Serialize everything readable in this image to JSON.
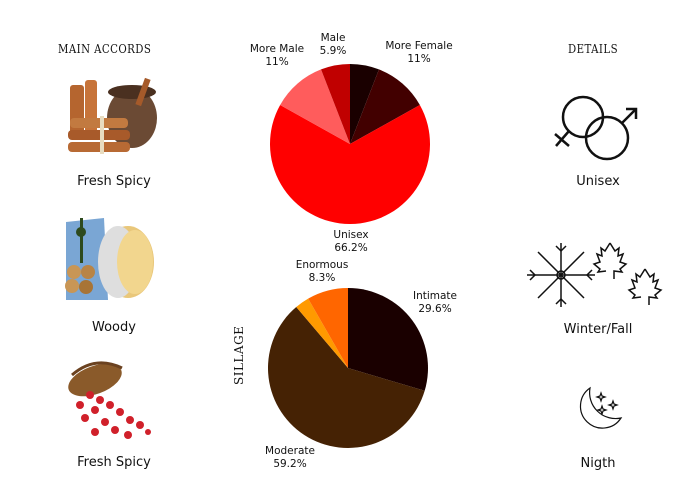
{
  "main_accords": {
    "title": "MAIN ACCORDS",
    "items": [
      {
        "label": "Fresh Spicy",
        "icon": "cinnamon-image"
      },
      {
        "label": "Woody",
        "icon": "wood-logs-image"
      },
      {
        "label": "Fresh Spicy",
        "icon": "pink-pepper-image"
      }
    ]
  },
  "details": {
    "title": "DETAILS",
    "items": [
      {
        "label": "Unisex",
        "icon": "gender-symbols-icon"
      },
      {
        "label": "Winter/Fall",
        "icon": "snowflake-leaves-icon"
      },
      {
        "label": "Nigth",
        "icon": "moon-stars-icon"
      }
    ]
  },
  "sillage_title": "SILLAGE",
  "chart_data": [
    {
      "type": "pie",
      "slices": [
        {
          "label": "",
          "value": 5.9,
          "color": "#1a0000"
        },
        {
          "label": "More Female",
          "value": 11,
          "display": "11%",
          "color": "#420000"
        },
        {
          "label": "Unisex",
          "value": 66.2,
          "display": "66.2%",
          "color": "#ff0000"
        },
        {
          "label": "More Male",
          "value": 11,
          "display": "11%",
          "color": "#ff5c5c"
        },
        {
          "label": "Male",
          "value": 5.9,
          "display": "5.9%",
          "color": "#c00000"
        }
      ]
    },
    {
      "type": "pie",
      "title": "SILLAGE",
      "slices": [
        {
          "label": "Intimate",
          "value": 29.6,
          "display": "29.6%",
          "color": "#1a0000"
        },
        {
          "label": "Moderate",
          "value": 59.2,
          "display": "59.2%",
          "color": "#452204"
        },
        {
          "label": "",
          "value": 2.9,
          "color": "#ff9a00"
        },
        {
          "label": "Enormous",
          "value": 8.3,
          "display": "8.3%",
          "color": "#ff6600"
        }
      ]
    }
  ]
}
